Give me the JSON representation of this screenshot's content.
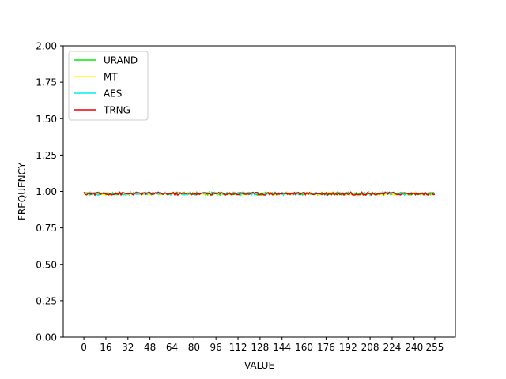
{
  "chart_data": {
    "type": "line",
    "title": "",
    "xlabel": "VALUE",
    "ylabel": "FREQUENCY",
    "xlim": [
      -15,
      270
    ],
    "ylim": [
      0,
      2
    ],
    "grid": false,
    "legend_placement": "top-left",
    "x_ticks": [
      "0",
      "16",
      "32",
      "48",
      "64",
      "80",
      "96",
      "112",
      "128",
      "144",
      "160",
      "176",
      "192",
      "208",
      "224",
      "240",
      "255"
    ],
    "y_ticks": [
      "0.00",
      "0.25",
      "0.50",
      "0.75",
      "1.00",
      "1.25",
      "1.50",
      "1.75",
      "2.00"
    ],
    "x_range": [
      0,
      255
    ],
    "series": [
      {
        "name": "URAND",
        "color": "#00ee00",
        "approx_mean": 0.985,
        "approx_min": 0.975,
        "approx_max": 0.995
      },
      {
        "name": "MT",
        "color": "#ffff00",
        "approx_mean": 0.985,
        "approx_min": 0.975,
        "approx_max": 0.995
      },
      {
        "name": "AES",
        "color": "#00eeee",
        "approx_mean": 0.985,
        "approx_min": 0.975,
        "approx_max": 0.995
      },
      {
        "name": "TRNG",
        "color": "#ee0000",
        "approx_mean": 0.985,
        "approx_min": 0.975,
        "approx_max": 0.995
      }
    ]
  }
}
